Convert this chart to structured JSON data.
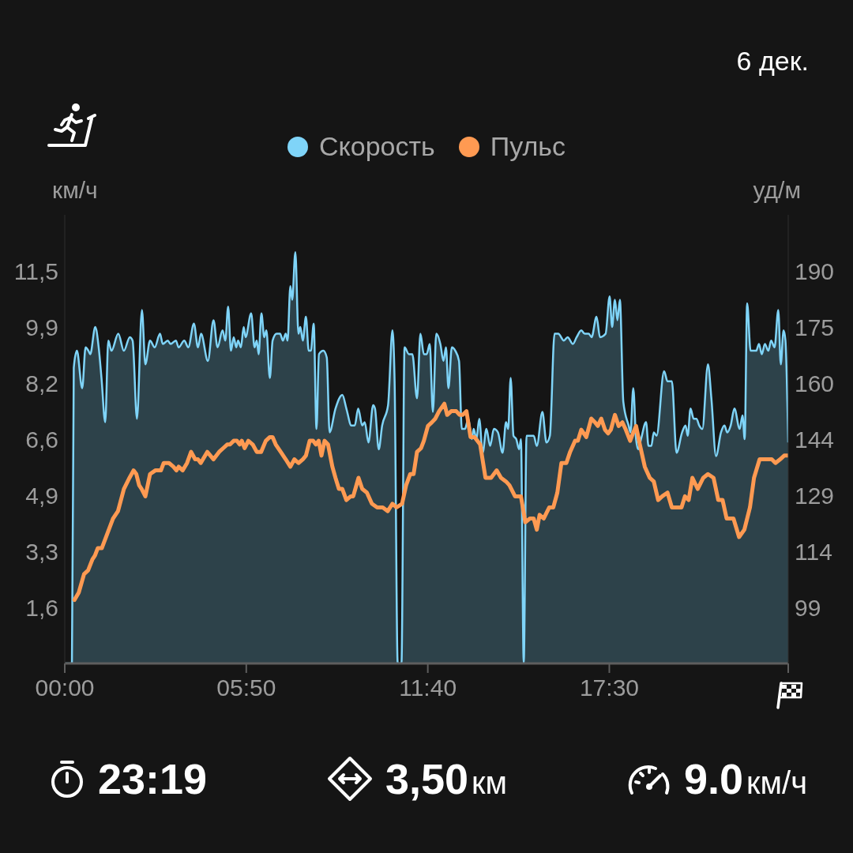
{
  "chart_data": {
    "type": "line",
    "subtitle": "6 дек.",
    "ylabel": "км/ч",
    "y2label": "уд/м",
    "legend": "top",
    "xlim": [
      0,
      23.25
    ],
    "xticks": [
      {
        "value": 0,
        "label": "00:00"
      },
      {
        "value": 5.833,
        "label": "05:50"
      },
      {
        "value": 11.667,
        "label": "11:40"
      },
      {
        "value": 17.5,
        "label": "17:30"
      },
      {
        "value": 23.25,
        "label": null
      }
    ],
    "ylim": [
      0,
      13.2
    ],
    "yticks": [
      {
        "value": 1.65,
        "label": "1,6"
      },
      {
        "value": 3.3,
        "label": "3,3"
      },
      {
        "value": 4.95,
        "label": "4,9"
      },
      {
        "value": 6.6,
        "label": "6,6"
      },
      {
        "value": 8.25,
        "label": "8,2"
      },
      {
        "value": 9.9,
        "label": "9,9"
      },
      {
        "value": 11.55,
        "label": "11,5"
      }
    ],
    "y2lim": [
      83.85,
      205.05
    ],
    "y2ticks": [
      99,
      {
        "value": 114.15,
        "label": "114"
      },
      {
        "value": 129.3,
        "label": "129"
      },
      {
        "value": 144.45,
        "label": "144"
      },
      {
        "value": 159.6,
        "label": "160"
      },
      {
        "value": 174.75,
        "label": "175"
      },
      {
        "value": 189.9,
        "label": "190"
      }
    ],
    "series": [
      {
        "name": "Скорость",
        "type": "area",
        "color": "#7fd4f8",
        "x": [
          0,
          0.23,
          0.29,
          0.39,
          0.56,
          0.67,
          0.76,
          0.82,
          0.98,
          1.09,
          1.18,
          1.3,
          1.4,
          1.5,
          1.72,
          1.9,
          2.09,
          2.18,
          2.32,
          2.48,
          2.59,
          2.74,
          2.89,
          3.06,
          3.15,
          3.31,
          3.4,
          3.57,
          3.66,
          3.84,
          3.97,
          4.15,
          4.28,
          4.38,
          4.6,
          4.78,
          4.91,
          5.07,
          5.16,
          5.25,
          5.34,
          5.43,
          5.51,
          5.57,
          5.66,
          5.75,
          5.81,
          5.99,
          6.1,
          6.17,
          6.23,
          6.32,
          6.41,
          6.48,
          6.59,
          6.68,
          6.81,
          6.92,
          7.01,
          7.1,
          7.16,
          7.25,
          7.31,
          7.41,
          7.51,
          7.57,
          7.65,
          7.75,
          7.84,
          7.91,
          8.0,
          8.09,
          8.17,
          8.31,
          8.42,
          8.51,
          8.7,
          8.92,
          9.05,
          9.21,
          9.32,
          9.43,
          9.56,
          9.64,
          9.76,
          9.91,
          9.97,
          10.09,
          10.2,
          10.39,
          10.53,
          10.6,
          10.7,
          10.82,
          10.92,
          11.06,
          11.17,
          11.32,
          11.43,
          11.54,
          11.63,
          11.73,
          11.83,
          11.94,
          12.07,
          12.17,
          12.25,
          12.33,
          12.44,
          12.55,
          12.67,
          12.76,
          12.86,
          12.97,
          13.08,
          13.14,
          13.23,
          13.32,
          13.43,
          13.55,
          13.67,
          13.79,
          13.92,
          14.07,
          14.18,
          14.25,
          14.33,
          14.42,
          14.51,
          14.6,
          14.66,
          14.75,
          14.84,
          14.95,
          15.07,
          15.17,
          15.35,
          15.48,
          15.59,
          15.74,
          15.86,
          16.04,
          16.16,
          16.33,
          16.45,
          16.6,
          16.71,
          16.84,
          16.93,
          17.09,
          17.2,
          17.38,
          17.51,
          17.59,
          17.68,
          17.76,
          17.84,
          17.95,
          18.12,
          18.18,
          18.27,
          18.36,
          18.43,
          18.52,
          18.68,
          18.76,
          18.85,
          18.93,
          19.02,
          19.26,
          19.37,
          19.51,
          19.66,
          19.84,
          19.95,
          20.02,
          20.11,
          20.21,
          20.3,
          20.39,
          20.49,
          20.67,
          20.78,
          20.93,
          21.09,
          21.2,
          21.29,
          21.4,
          21.52,
          21.69,
          21.78,
          21.85,
          21.93,
          22.04,
          22.22,
          22.31,
          22.4,
          22.5,
          22.61,
          22.7,
          22.81,
          22.93,
          23.01,
          23.1,
          23.16,
          23.25
        ],
        "values": [
          0,
          0,
          8.7,
          9.2,
          8.1,
          9.3,
          9.2,
          9.1,
          9.9,
          9.3,
          8.4,
          7.1,
          9.5,
          9.2,
          9.7,
          9.2,
          9.6,
          9.5,
          7.2,
          10.4,
          8.8,
          9.5,
          9.3,
          9.7,
          9.4,
          9.5,
          9.4,
          9.5,
          9.3,
          9.5,
          9.3,
          10.0,
          9.3,
          9.7,
          8.9,
          10.1,
          9.3,
          9.8,
          9.5,
          10.5,
          9.2,
          9.6,
          9.3,
          9.5,
          9.3,
          9.9,
          9.6,
          10.3,
          9.3,
          9.5,
          9.1,
          10.3,
          9.6,
          9.8,
          8.4,
          9.5,
          9.7,
          9.7,
          9.5,
          9.7,
          9.5,
          11.1,
          10.7,
          12.1,
          9.7,
          9.9,
          9.5,
          10.2,
          9.2,
          9.2,
          10.0,
          6.9,
          9.1,
          9.2,
          9.0,
          6.8,
          7.5,
          7.9,
          7.5,
          7.0,
          7.0,
          7.5,
          7.0,
          7.1,
          6.5,
          7.6,
          7.5,
          6.3,
          7.0,
          7.6,
          9.8,
          8.3,
          0,
          0,
          9.3,
          9.1,
          9.1,
          7.8,
          9.7,
          9.1,
          9.1,
          9.4,
          7.4,
          9.7,
          9.4,
          8.9,
          9.3,
          8.1,
          9.3,
          9.2,
          8.9,
          6.9,
          6.9,
          7.2,
          6.6,
          6.9,
          6.6,
          7.2,
          6.2,
          6.9,
          6.4,
          6.9,
          6.8,
          6.2,
          7.1,
          6.9,
          8.4,
          6.7,
          6.6,
          6.3,
          6.6,
          0,
          6.7,
          6.7,
          6.7,
          6.4,
          7.4,
          6.5,
          6.7,
          9.7,
          9.7,
          9.5,
          9.6,
          9.4,
          9.6,
          9.8,
          9.7,
          9.7,
          9.6,
          10.2,
          9.6,
          9.7,
          10.8,
          9.9,
          10.7,
          10.1,
          10.7,
          7.7,
          7.0,
          6.8,
          8.1,
          6.6,
          6.3,
          6.6,
          7.1,
          6.4,
          6.4,
          6.8,
          6.7,
          8.6,
          8.3,
          8.3,
          6.2,
          6.8,
          7.0,
          6.7,
          7.5,
          7.2,
          7.2,
          7.0,
          6.9,
          8.8,
          7.8,
          6.1,
          6.8,
          7.0,
          6.8,
          7.0,
          7.5,
          6.9,
          7.3,
          6.6,
          10.6,
          9.2,
          9.2,
          9.4,
          9.1,
          9.4,
          9.2,
          9.5,
          9.3,
          10.4,
          8.8,
          9.8,
          9.5,
          6.5
        ]
      },
      {
        "name": "Пульс",
        "color": "#ff9a52",
        "axis": "y2",
        "x": [
          0.31,
          0.45,
          0.62,
          0.75,
          0.89,
          0.97,
          1.06,
          1.19,
          1.37,
          1.55,
          1.71,
          1.9,
          2.08,
          2.21,
          2.3,
          2.39,
          2.47,
          2.59,
          2.74,
          2.91,
          3.09,
          3.18,
          3.35,
          3.49,
          3.59,
          3.66,
          3.79,
          3.93,
          4.06,
          4.19,
          4.28,
          4.37,
          4.58,
          4.78,
          4.96,
          5.09,
          5.22,
          5.31,
          5.43,
          5.53,
          5.62,
          5.69,
          5.78,
          5.9,
          6.04,
          6.17,
          6.31,
          6.46,
          6.59,
          6.68,
          6.78,
          6.94,
          7.1,
          7.25,
          7.38,
          7.51,
          7.65,
          7.75,
          7.87,
          7.98,
          8.07,
          8.16,
          8.25,
          8.35,
          8.46,
          8.6,
          8.7,
          8.81,
          8.92,
          9.05,
          9.19,
          9.27,
          9.44,
          9.56,
          9.71,
          9.87,
          10.04,
          10.22,
          10.38,
          10.53,
          10.66,
          10.84,
          10.97,
          11.1,
          11.21,
          11.32,
          11.45,
          11.54,
          11.67,
          11.8,
          11.91,
          12.03,
          12.2,
          12.29,
          12.42,
          12.58,
          12.69,
          12.79,
          12.91,
          13.04,
          13.17,
          13.35,
          13.52,
          13.7,
          13.88,
          14.02,
          14.18,
          14.29,
          14.47,
          14.66,
          14.8,
          14.95,
          15.07,
          15.17,
          15.26,
          15.39,
          15.57,
          15.7,
          15.83,
          15.96,
          16.12,
          16.24,
          16.4,
          16.49,
          16.6,
          16.76,
          16.92,
          17.04,
          17.13,
          17.24,
          17.36,
          17.46,
          17.55,
          17.68,
          17.8,
          17.92,
          18.03,
          18.17,
          18.26,
          18.36,
          18.48,
          18.64,
          18.8,
          18.93,
          19.07,
          19.2,
          19.37,
          19.51,
          19.68,
          19.82,
          19.93,
          20.05,
          20.17,
          20.34,
          20.52,
          20.67,
          20.85,
          21.0,
          21.14,
          21.27,
          21.49,
          21.67,
          21.84,
          22.02,
          22.15,
          22.33,
          22.46,
          22.59,
          22.72,
          22.84,
          22.99,
          23.12,
          23.25
        ],
        "values": [
          101,
          103,
          108,
          109,
          112,
          113,
          115,
          115,
          119,
          123,
          125,
          131,
          134,
          136,
          135,
          132,
          131,
          129,
          135,
          136,
          136,
          138,
          138,
          137,
          136,
          137,
          136,
          138,
          141,
          139,
          139,
          138,
          141,
          139,
          141,
          142,
          143,
          143,
          144,
          144,
          143,
          144,
          142,
          144,
          143,
          141,
          141,
          144,
          145,
          145,
          143,
          141,
          139,
          137,
          139,
          138,
          139,
          140,
          144,
          144,
          143,
          144,
          140,
          144,
          143,
          137,
          134,
          131,
          131,
          128,
          129,
          129,
          134,
          131,
          130,
          127,
          126,
          126,
          125,
          127,
          126,
          127,
          132,
          135,
          135,
          141,
          142,
          144,
          148,
          149,
          150,
          152,
          154,
          151,
          152,
          152,
          151,
          151,
          152,
          145,
          145,
          143,
          134,
          134,
          136,
          134,
          133,
          132,
          129,
          129,
          122,
          123,
          123,
          120,
          124,
          123,
          126,
          126,
          130,
          138,
          138,
          141,
          144,
          144,
          147,
          145,
          150,
          149,
          148,
          150,
          147,
          146,
          147,
          151,
          148,
          149,
          147,
          144,
          146,
          148,
          143,
          137,
          134,
          133,
          128,
          129,
          130,
          126,
          126,
          126,
          129,
          128,
          134,
          131,
          134,
          135,
          134,
          128,
          128,
          123,
          123,
          118,
          120,
          126,
          134,
          139,
          139,
          139,
          139,
          138,
          139,
          140,
          140
        ]
      }
    ],
    "annotations": [
      "23:19",
      "3,50км",
      "9.0км/ч"
    ]
  }
}
